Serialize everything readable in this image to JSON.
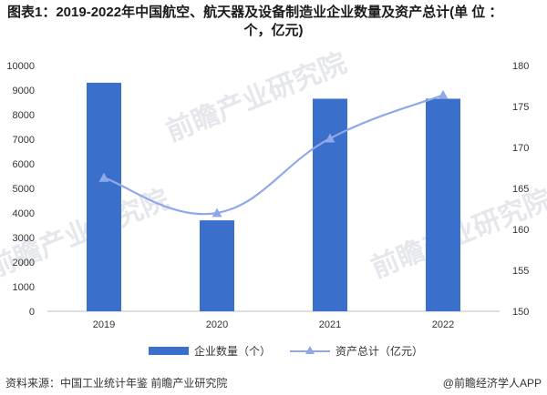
{
  "title_line1": "图表1：2019-2022年中国航空、航天器及设备制造业企业数量及资产总计(单 位 ：",
  "title_line2": "个，亿元)",
  "chart_data": {
    "type": "bar",
    "categories": [
      "2019",
      "2020",
      "2021",
      "2022"
    ],
    "series": [
      {
        "name": "企业数量（个）",
        "type": "bar",
        "axis": "left",
        "values": [
          9300,
          3700,
          8650,
          8650
        ]
      },
      {
        "name": "资产总计（亿元）",
        "type": "line",
        "axis": "right",
        "values": [
          166.3,
          162.0,
          171.1,
          176.4
        ]
      }
    ],
    "y_left": {
      "min": 0,
      "max": 10000,
      "ticks": [
        0,
        1000,
        2000,
        3000,
        4000,
        5000,
        6000,
        7000,
        8000,
        9000,
        10000
      ]
    },
    "y_right": {
      "min": 150,
      "max": 180,
      "ticks": [
        150,
        155,
        160,
        165,
        170,
        175,
        180
      ]
    },
    "grid": false,
    "legend_position": "bottom",
    "colors": {
      "bar": "#3a6fcc",
      "line": "#8fa9e8"
    }
  },
  "footer": {
    "source": "资料来源：中国工业统计年鉴 前瞻产业研究院",
    "brand": "@前瞻经济学人APP"
  },
  "watermark_text": "前瞻产业研究院"
}
